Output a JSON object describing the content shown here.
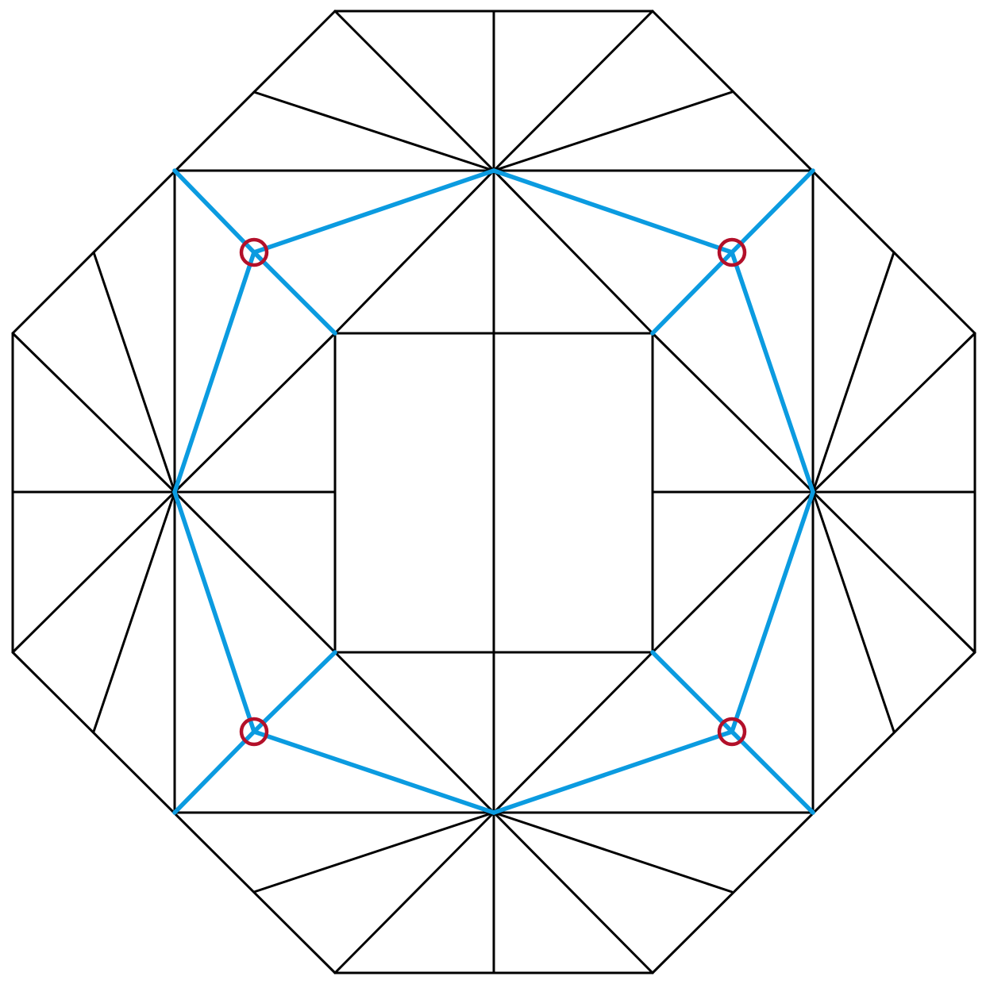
{
  "diagram": {
    "colors": {
      "background": "#ffffff",
      "line": "#000000",
      "highlight": "#0b9be0",
      "marker": "#b3102a"
    },
    "shape": "octagon crease pattern",
    "marker_count": 4
  }
}
